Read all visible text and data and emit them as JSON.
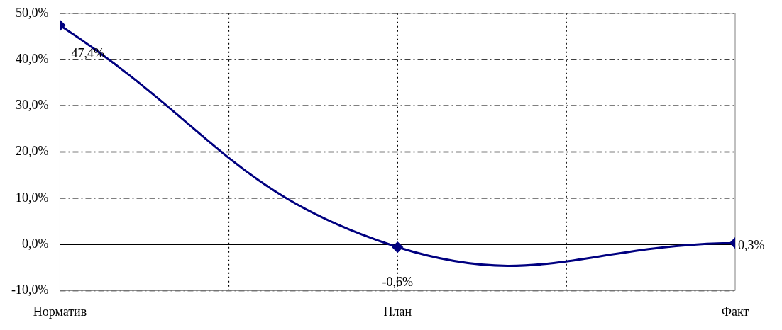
{
  "chart_data": {
    "type": "line",
    "categories": [
      "Норматив",
      "План",
      "Факт"
    ],
    "series": [
      {
        "color": "#000080",
        "values": [
          47.4,
          -0.6,
          0.3
        ],
        "value_labels": [
          "47,4%",
          "-0,6%",
          "0,3%"
        ]
      }
    ],
    "ylim": [
      -10,
      50
    ],
    "yticks": [
      {
        "value": -10,
        "label": "-10,0%"
      },
      {
        "value": 0,
        "label": "0,0%"
      },
      {
        "value": 10,
        "label": "10,0%"
      },
      {
        "value": 20,
        "label": "20,0%"
      },
      {
        "value": 30,
        "label": "30,0%"
      },
      {
        "value": 40,
        "label": "40,0%"
      },
      {
        "value": 50,
        "label": "50,0%"
      }
    ],
    "grid": true,
    "legend": false,
    "marker": "diamond",
    "line_style": "solid"
  }
}
